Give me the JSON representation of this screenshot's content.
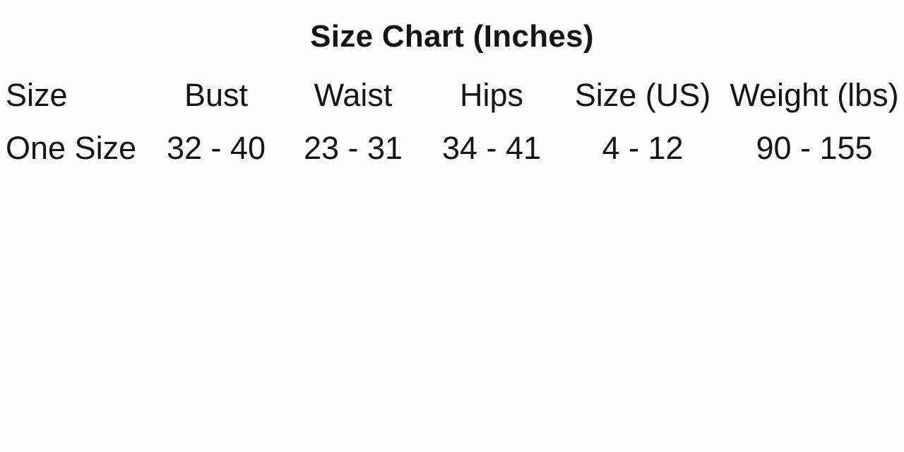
{
  "title": "Size Chart (Inches)",
  "chart_data": {
    "type": "table",
    "title": "Size Chart (Inches)",
    "columns": [
      "Size",
      "Bust",
      "Waist",
      "Hips",
      "Size (US)",
      "Weight (lbs)"
    ],
    "rows": [
      [
        "One Size",
        "32 - 40",
        "23 - 31",
        "34 - 41",
        "4 - 12",
        "90 - 155"
      ]
    ],
    "units": "inches (bust/waist/hips), lbs (weight)",
    "layout": {
      "grid": "off",
      "title_position": "top-center",
      "first_column_alignment": "left",
      "other_columns_alignment": "center"
    }
  },
  "colors": {
    "background": "#fdfdfd",
    "text": "#151515"
  }
}
